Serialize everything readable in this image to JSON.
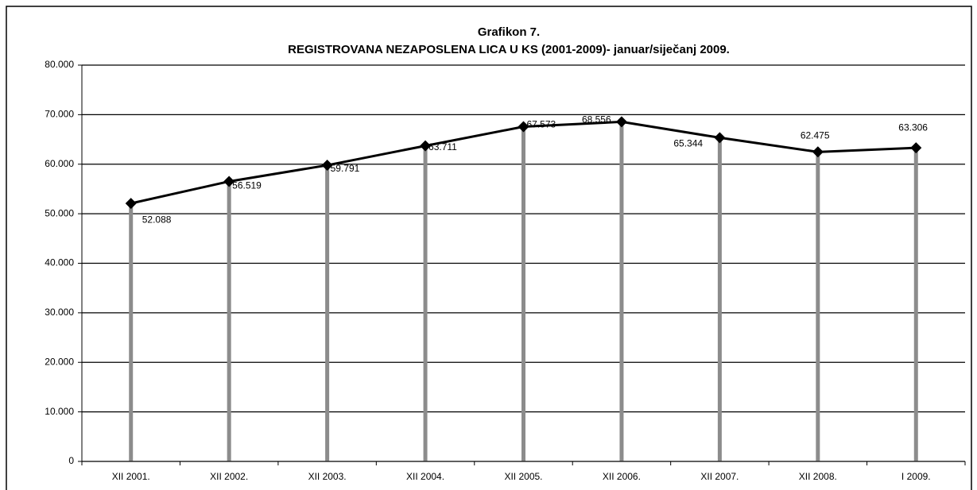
{
  "chart_data": {
    "type": "line",
    "title": "Grafikon 7.",
    "subtitle": "REGISTROVANA NEZAPOSLENA LICA U KS  (2001-2009)- januar/siječanj 2009.",
    "categories": [
      "XII 2001.",
      "XII 2002.",
      "XII 2003.",
      "XII 2004.",
      "XII 2005.",
      "XII  2006.",
      "XII 2007.",
      "XII 2008.",
      "I 2009."
    ],
    "values": [
      52088,
      56519,
      59791,
      63711,
      67573,
      68556,
      65344,
      62475,
      63306
    ],
    "value_labels": [
      "52.088",
      "56.519",
      "59.791",
      "63.711",
      "67.573",
      "68.556",
      "65.344",
      "62.475",
      "63.306"
    ],
    "color": "#000000",
    "drop_color": "#8c8c8c",
    "ylim": [
      0,
      80000
    ],
    "yticks": [
      0,
      {
        "value": 10000,
        "label": "10.000"
      },
      {
        "value": 20000,
        "label": "20.000"
      },
      {
        "value": 30000,
        "label": "30.000"
      },
      {
        "value": 40000,
        "label": "40.000"
      },
      {
        "value": 50000,
        "label": "50.000"
      },
      {
        "value": 60000,
        "label": "60.000"
      },
      {
        "value": 70000,
        "label": "70.000"
      },
      {
        "value": 80000,
        "label": "80.000"
      }
    ],
    "grid": true
  }
}
